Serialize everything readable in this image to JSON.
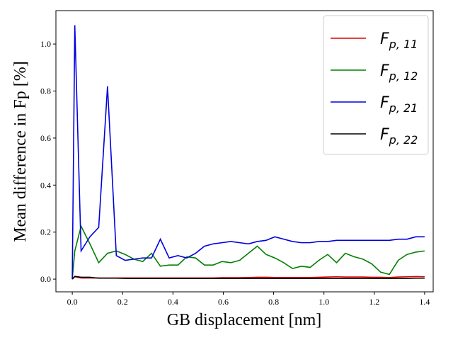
{
  "chart_data": {
    "type": "line",
    "xlabel": "GB displacement [nm]",
    "ylabel": "Mean difference in Fp [%]",
    "x": [
      0,
      0.01,
      0.035,
      0.07,
      0.105,
      0.14,
      0.175,
      0.21,
      0.245,
      0.28,
      0.315,
      0.35,
      0.385,
      0.42,
      0.455,
      0.49,
      0.525,
      0.56,
      0.595,
      0.63,
      0.665,
      0.7,
      0.735,
      0.77,
      0.805,
      0.84,
      0.875,
      0.91,
      0.945,
      0.98,
      1.015,
      1.05,
      1.085,
      1.12,
      1.155,
      1.19,
      1.225,
      1.26,
      1.295,
      1.33,
      1.365,
      1.4
    ],
    "series": [
      {
        "name": "Fp, 11",
        "color": "#e00000",
        "values": [
          0,
          0.01,
          0.005,
          0.005,
          0.005,
          0.005,
          0.005,
          0.005,
          0.005,
          0.005,
          0.005,
          0.005,
          0.005,
          0.005,
          0.005,
          0.005,
          0.005,
          0.005,
          0.006,
          0.006,
          0.006,
          0.007,
          0.008,
          0.008,
          0.007,
          0.007,
          0.007,
          0.007,
          0.007,
          0.008,
          0.009,
          0.01,
          0.009,
          0.009,
          0.009,
          0.008,
          0.008,
          0.007,
          0.009,
          0.01,
          0.011,
          0.01
        ]
      },
      {
        "name": "Fp, 12",
        "color": "#008000",
        "values": [
          0,
          0.12,
          0.225,
          0.15,
          0.07,
          0.11,
          0.12,
          0.105,
          0.085,
          0.075,
          0.11,
          0.055,
          0.06,
          0.06,
          0.095,
          0.09,
          0.06,
          0.06,
          0.075,
          0.07,
          0.08,
          0.11,
          0.14,
          0.105,
          0.09,
          0.07,
          0.045,
          0.055,
          0.05,
          0.08,
          0.105,
          0.07,
          0.11,
          0.095,
          0.085,
          0.065,
          0.03,
          0.02,
          0.08,
          0.105,
          0.115,
          0.12
        ]
      },
      {
        "name": "Fp, 21",
        "color": "#0000e0",
        "values": [
          0,
          1.08,
          0.12,
          0.18,
          0.22,
          0.82,
          0.1,
          0.08,
          0.085,
          0.09,
          0.09,
          0.17,
          0.09,
          0.1,
          0.09,
          0.11,
          0.14,
          0.15,
          0.155,
          0.16,
          0.155,
          0.15,
          0.16,
          0.165,
          0.18,
          0.17,
          0.16,
          0.155,
          0.155,
          0.16,
          0.16,
          0.165,
          0.165,
          0.165,
          0.165,
          0.165,
          0.165,
          0.165,
          0.17,
          0.17,
          0.18,
          0.18
        ]
      },
      {
        "name": "Fp, 22",
        "color": "#000000",
        "values": [
          0,
          0.012,
          0.008,
          0.008,
          0.004,
          0.004,
          0.004,
          0.003,
          0.003,
          0.003,
          0.003,
          0.003,
          0.003,
          0.003,
          0.003,
          0.003,
          0.003,
          0.003,
          0.003,
          0.003,
          0.003,
          0.003,
          0.003,
          0.003,
          0.003,
          0.003,
          0.003,
          0.003,
          0.003,
          0.003,
          0.003,
          0.003,
          0.003,
          0.003,
          0.003,
          0.003,
          0.003,
          0.003,
          0.003,
          0.003,
          0.004,
          0.004
        ]
      }
    ],
    "xlim": [
      -0.065,
      1.434
    ],
    "ylim": [
      -0.054,
      1.142
    ],
    "xticks": [
      {
        "value": 0,
        "label": "0.0"
      },
      0.2,
      0.4,
      0.6,
      0.8,
      {
        "value": 1,
        "label": "1.0"
      },
      1.2,
      1.4
    ],
    "yticks": [
      {
        "value": 0,
        "label": "0.0"
      },
      0.2,
      0.4,
      0.6,
      0.8,
      {
        "value": 1,
        "label": "1.0"
      }
    ],
    "legend": "upper right"
  }
}
